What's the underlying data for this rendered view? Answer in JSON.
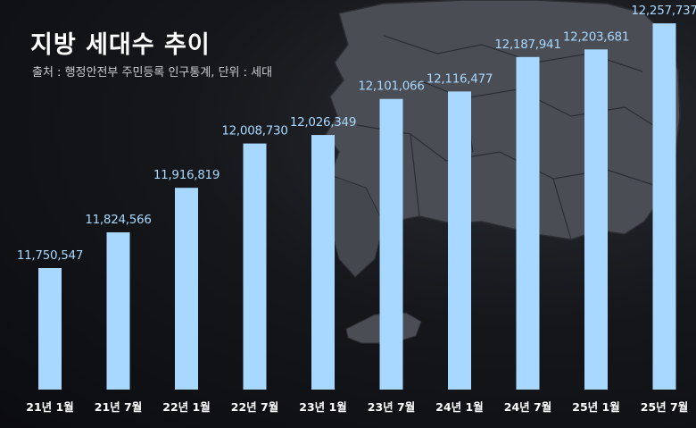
{
  "header": {
    "title": "지방 세대수 추이",
    "subtitle": "출처 : 행정안전부 주민등록 인구통계, 단위 : 세대"
  },
  "colors": {
    "bar": "#a8d8ff",
    "label": "#a8d8ff",
    "axis_text": "#ffffff",
    "map": "#4a4d53"
  },
  "chart_data": {
    "type": "bar",
    "title": "지방 세대수 추이",
    "subtitle": "출처 : 행정안전부 주민등록 인구통계, 단위 : 세대",
    "xlabel": "",
    "ylabel": "",
    "categories": [
      "21년 1월",
      "21년 7월",
      "22년 1월",
      "22년 7월",
      "23년 1월",
      "23년 7월",
      "24년 1월",
      "24년 7월",
      "25년 1월",
      "25년 7월"
    ],
    "values": [
      11750547,
      11824566,
      11916819,
      12008730,
      12026349,
      12101066,
      12116477,
      12187941,
      12203681,
      12257737
    ],
    "value_labels": [
      "11,750,547",
      "11,824,566",
      "11,916,819",
      "12,008,730",
      "12,026,349",
      "12,101,066",
      "12,116,477",
      "12,187,941",
      "12,203,681",
      "12,257,737"
    ],
    "grid": false,
    "legend": "none"
  }
}
